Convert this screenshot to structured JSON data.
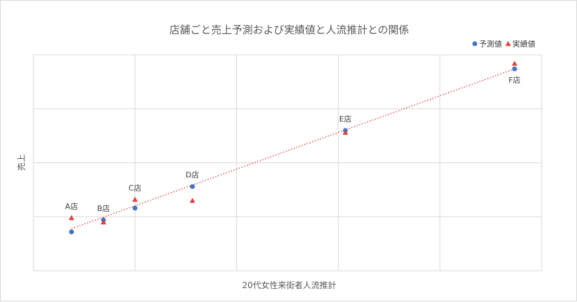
{
  "chart_data": {
    "type": "scatter",
    "title": "店舗ごと売上予測および実績値と人流推計との関係",
    "xlabel": "20代女性来街者人流推計",
    "ylabel": "売上",
    "xlim": [
      0,
      100
    ],
    "ylim": [
      0,
      100
    ],
    "x_ticks_labeled": false,
    "y_ticks_labeled": false,
    "grid": true,
    "legend_position": "top-right",
    "series": [
      {
        "name": "予測値",
        "marker": "circle",
        "color": "#4472c4",
        "points": [
          {
            "label": "A店",
            "x": 7.5,
            "y": 18
          },
          {
            "label": "B店",
            "x": 13.8,
            "y": 23.5
          },
          {
            "label": "C店",
            "x": 20,
            "y": 29
          },
          {
            "label": "D店",
            "x": 31.3,
            "y": 39
          },
          {
            "label": "E店",
            "x": 61.4,
            "y": 65
          },
          {
            "label": "F店",
            "x": 94.7,
            "y": 93.5
          }
        ]
      },
      {
        "name": "実績値",
        "marker": "triangle",
        "color": "#e0403a",
        "points": [
          {
            "label": "A店",
            "x": 7.5,
            "y": 24.5
          },
          {
            "label": "B店",
            "x": 13.8,
            "y": 22.5
          },
          {
            "label": "C店",
            "x": 20,
            "y": 33
          },
          {
            "label": "D店",
            "x": 31.3,
            "y": 32.5
          },
          {
            "label": "E店",
            "x": 61.4,
            "y": 64
          },
          {
            "label": "F店",
            "x": 94.7,
            "y": 96
          }
        ]
      }
    ],
    "trendline": {
      "type": "linear",
      "color": "#d9534f",
      "style": "dotted",
      "x": [
        7.5,
        94.7
      ],
      "y": [
        19.5,
        93.5
      ]
    }
  }
}
